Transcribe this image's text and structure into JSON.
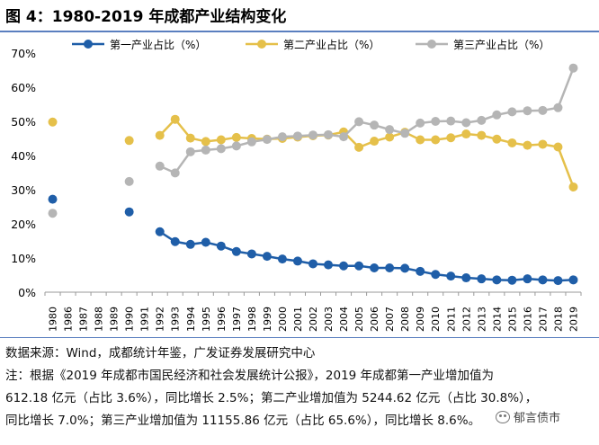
{
  "title": "图 4：1980-2019 年成都产业结构变化",
  "chart_data": {
    "type": "line",
    "title": "图 4：1980-2019 年成都产业结构变化",
    "x": [
      "1980",
      "1986",
      "1987",
      "1988",
      "1989",
      "1990",
      "1991",
      "1992",
      "1993",
      "1994",
      "1995",
      "1996",
      "1997",
      "1998",
      "1999",
      "2000",
      "2001",
      "2002",
      "2003",
      "2004",
      "2005",
      "2006",
      "2007",
      "2008",
      "2009",
      "2010",
      "2011",
      "2012",
      "2013",
      "2014",
      "2015",
      "2016",
      "2017",
      "2018",
      "2019"
    ],
    "series": [
      {
        "name": "第一产业占比（%）",
        "color": "#1f5ea8",
        "values": [
          27.2,
          null,
          null,
          null,
          null,
          23.5,
          null,
          17.7,
          14.8,
          14.0,
          14.6,
          13.5,
          11.9,
          11.2,
          10.5,
          9.7,
          9.1,
          8.3,
          8.0,
          7.7,
          7.7,
          7.1,
          7.1,
          7.0,
          6.1,
          5.2,
          4.7,
          4.2,
          3.9,
          3.6,
          3.5,
          3.9,
          3.6,
          3.4,
          3.6
        ]
      },
      {
        "name": "第二产业占比（%）",
        "color": "#e5c04a",
        "values": [
          49.8,
          null,
          null,
          null,
          null,
          44.4,
          null,
          45.9,
          50.6,
          45.1,
          44.1,
          44.6,
          45.3,
          45.0,
          44.8,
          45.0,
          45.4,
          45.8,
          46.0,
          46.9,
          42.4,
          44.2,
          45.4,
          46.8,
          44.6,
          44.6,
          45.2,
          46.3,
          45.9,
          44.8,
          43.7,
          43.0,
          43.3,
          42.5,
          30.8
        ]
      },
      {
        "name": "第三产业占比（%）",
        "color": "#b5b5b5",
        "values": [
          23.1,
          null,
          null,
          null,
          null,
          32.4,
          null,
          36.9,
          34.9,
          41.1,
          41.6,
          42.0,
          42.8,
          44.0,
          44.7,
          45.5,
          45.7,
          46.0,
          46.1,
          45.5,
          49.9,
          48.9,
          47.6,
          46.5,
          49.5,
          50.0,
          50.1,
          49.6,
          50.3,
          51.9,
          52.8,
          53.1,
          53.2,
          54.0,
          65.6
        ]
      }
    ],
    "ylim": [
      0,
      70
    ],
    "yticks": [
      0,
      10,
      20,
      30,
      40,
      50,
      60,
      70
    ],
    "ytick_labels": [
      "0%",
      "10%",
      "20%",
      "30%",
      "40%",
      "50%",
      "60%",
      "70%"
    ],
    "legend_position": "top",
    "grid": false
  },
  "notes": {
    "source": "数据来源：Wind，成都统计年鉴，广发证券发展研究中心",
    "line1": "注：根据《2019 年成都市国民经济和社会发展统计公报》，2019 年成都第一产业增加值为",
    "line2": "612.18 亿元（占比 3.6%），同比增长 2.5%；第二产业增加值为 5244.62 亿元（占比 30.8%），",
    "line3": "同比增长 7.0%；第三产业增加值为 11155.86 亿元（占比 65.6%），同比增长 8.6%。"
  },
  "watermark": {
    "text": "郁言债市",
    "icon": "wechat-icon"
  }
}
